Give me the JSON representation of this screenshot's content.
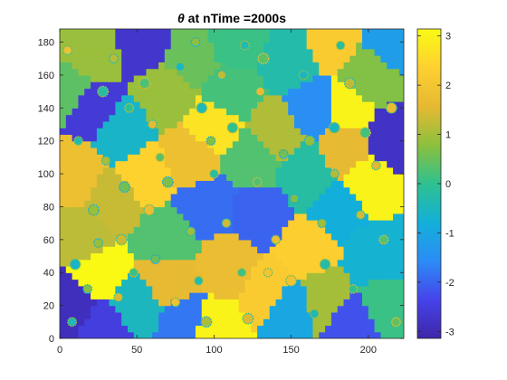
{
  "chart_data": {
    "type": "heatmap",
    "title": "θ at nTime =2000s",
    "title_parts": {
      "symbol": "θ",
      "rest": " at nTime =2000s"
    },
    "xlabel": "",
    "ylabel": "",
    "xlim": [
      0,
      223
    ],
    "ylim": [
      0,
      188
    ],
    "x_ticks": [
      0,
      50,
      100,
      150,
      200
    ],
    "y_ticks": [
      0,
      20,
      40,
      60,
      80,
      100,
      120,
      140,
      160,
      180
    ],
    "grid": false,
    "colormap": "parula",
    "colorbar": {
      "clim": [
        -3.14159,
        3.14159
      ],
      "ticks": [
        3,
        2,
        1,
        0,
        -1,
        -2,
        -3
      ],
      "placement": "right"
    },
    "colormap_stops": [
      "#3e26a8",
      "#4643ea",
      "#2c8cf6",
      "#13b0d9",
      "#2ec18f",
      "#8cc03d",
      "#e6b933",
      "#fed030",
      "#f9fb14"
    ],
    "domains": [
      {
        "x": 5,
        "y": 20,
        "v": -2.9
      },
      {
        "x": 15,
        "y": 60,
        "v": 1.2
      },
      {
        "x": 25,
        "y": 40,
        "v": 3.1
      },
      {
        "x": 30,
        "y": 5,
        "v": -2.5
      },
      {
        "x": 10,
        "y": 100,
        "v": 1.8
      },
      {
        "x": 35,
        "y": 85,
        "v": 1.3
      },
      {
        "x": 20,
        "y": 140,
        "v": -2.6
      },
      {
        "x": 40,
        "y": 125,
        "v": -0.6
      },
      {
        "x": 20,
        "y": 175,
        "v": 0.9
      },
      {
        "x": 55,
        "y": 180,
        "v": -2.7
      },
      {
        "x": 85,
        "y": 170,
        "v": 0.5
      },
      {
        "x": 70,
        "y": 150,
        "v": 0.9
      },
      {
        "x": 55,
        "y": 100,
        "v": 2.4
      },
      {
        "x": 70,
        "y": 60,
        "v": 0.3
      },
      {
        "x": 50,
        "y": 20,
        "v": -0.5
      },
      {
        "x": 70,
        "y": 35,
        "v": 1.6
      },
      {
        "x": 80,
        "y": 10,
        "v": -1.8
      },
      {
        "x": 100,
        "y": 5,
        "v": 3.0
      },
      {
        "x": 85,
        "y": 110,
        "v": 1.8
      },
      {
        "x": 95,
        "y": 80,
        "v": -1.9
      },
      {
        "x": 100,
        "y": 130,
        "v": 2.7
      },
      {
        "x": 110,
        "y": 150,
        "v": 0.2
      },
      {
        "x": 115,
        "y": 180,
        "v": 0.1
      },
      {
        "x": 110,
        "y": 45,
        "v": 1.7
      },
      {
        "x": 125,
        "y": 110,
        "v": 0.3
      },
      {
        "x": 130,
        "y": 75,
        "v": -2.0
      },
      {
        "x": 135,
        "y": 30,
        "v": 2.2
      },
      {
        "x": 150,
        "y": 20,
        "v": -1.0
      },
      {
        "x": 160,
        "y": 55,
        "v": 2.3
      },
      {
        "x": 160,
        "y": 100,
        "v": -0.2
      },
      {
        "x": 150,
        "y": 170,
        "v": -0.3
      },
      {
        "x": 175,
        "y": 180,
        "v": 2.2
      },
      {
        "x": 165,
        "y": 140,
        "v": -1.5
      },
      {
        "x": 185,
        "y": 140,
        "v": 3.0
      },
      {
        "x": 180,
        "y": 80,
        "v": -0.8
      },
      {
        "x": 185,
        "y": 115,
        "v": 1.6
      },
      {
        "x": 200,
        "y": 95,
        "v": 3.0
      },
      {
        "x": 215,
        "y": 120,
        "v": -2.8
      },
      {
        "x": 200,
        "y": 160,
        "v": 0.7
      },
      {
        "x": 215,
        "y": 180,
        "v": -1.2
      },
      {
        "x": 205,
        "y": 50,
        "v": -0.7
      },
      {
        "x": 210,
        "y": 20,
        "v": 0.1
      },
      {
        "x": 190,
        "y": 10,
        "v": -2.2
      },
      {
        "x": 170,
        "y": 25,
        "v": 1.0
      },
      {
        "x": 140,
        "y": 125,
        "v": 1.1
      },
      {
        "x": 5,
        "y": 150,
        "v": 0.4
      }
    ],
    "grains": [
      {
        "x": 10,
        "y": 45
      },
      {
        "x": 18,
        "y": 30
      },
      {
        "x": 8,
        "y": 10
      },
      {
        "x": 22,
        "y": 78
      },
      {
        "x": 12,
        "y": 120
      },
      {
        "x": 30,
        "y": 108
      },
      {
        "x": 28,
        "y": 150
      },
      {
        "x": 35,
        "y": 170
      },
      {
        "x": 45,
        "y": 140
      },
      {
        "x": 40,
        "y": 60
      },
      {
        "x": 48,
        "y": 40
      },
      {
        "x": 38,
        "y": 25
      },
      {
        "x": 55,
        "y": 155
      },
      {
        "x": 60,
        "y": 130
      },
      {
        "x": 65,
        "y": 110
      },
      {
        "x": 58,
        "y": 78
      },
      {
        "x": 62,
        "y": 48
      },
      {
        "x": 75,
        "y": 22
      },
      {
        "x": 70,
        "y": 95
      },
      {
        "x": 78,
        "y": 165
      },
      {
        "x": 88,
        "y": 180
      },
      {
        "x": 92,
        "y": 140
      },
      {
        "x": 85,
        "y": 65
      },
      {
        "x": 90,
        "y": 35
      },
      {
        "x": 95,
        "y": 10
      },
      {
        "x": 100,
        "y": 100
      },
      {
        "x": 105,
        "y": 160
      },
      {
        "x": 112,
        "y": 128
      },
      {
        "x": 108,
        "y": 70
      },
      {
        "x": 118,
        "y": 40
      },
      {
        "x": 122,
        "y": 12
      },
      {
        "x": 128,
        "y": 95
      },
      {
        "x": 130,
        "y": 150
      },
      {
        "x": 132,
        "y": 170
      },
      {
        "x": 140,
        "y": 60
      },
      {
        "x": 145,
        "y": 112
      },
      {
        "x": 150,
        "y": 35
      },
      {
        "x": 152,
        "y": 85
      },
      {
        "x": 158,
        "y": 160
      },
      {
        "x": 162,
        "y": 120
      },
      {
        "x": 165,
        "y": 15
      },
      {
        "x": 170,
        "y": 70
      },
      {
        "x": 172,
        "y": 45
      },
      {
        "x": 178,
        "y": 100
      },
      {
        "x": 182,
        "y": 178
      },
      {
        "x": 188,
        "y": 155
      },
      {
        "x": 190,
        "y": 30
      },
      {
        "x": 195,
        "y": 75
      },
      {
        "x": 198,
        "y": 125
      },
      {
        "x": 205,
        "y": 105
      },
      {
        "x": 210,
        "y": 60
      },
      {
        "x": 215,
        "y": 140
      },
      {
        "x": 218,
        "y": 10
      },
      {
        "x": 5,
        "y": 175
      },
      {
        "x": 42,
        "y": 92
      },
      {
        "x": 135,
        "y": 40
      },
      {
        "x": 98,
        "y": 120
      },
      {
        "x": 178,
        "y": 128
      },
      {
        "x": 25,
        "y": 58
      },
      {
        "x": 120,
        "y": 178
      }
    ]
  }
}
